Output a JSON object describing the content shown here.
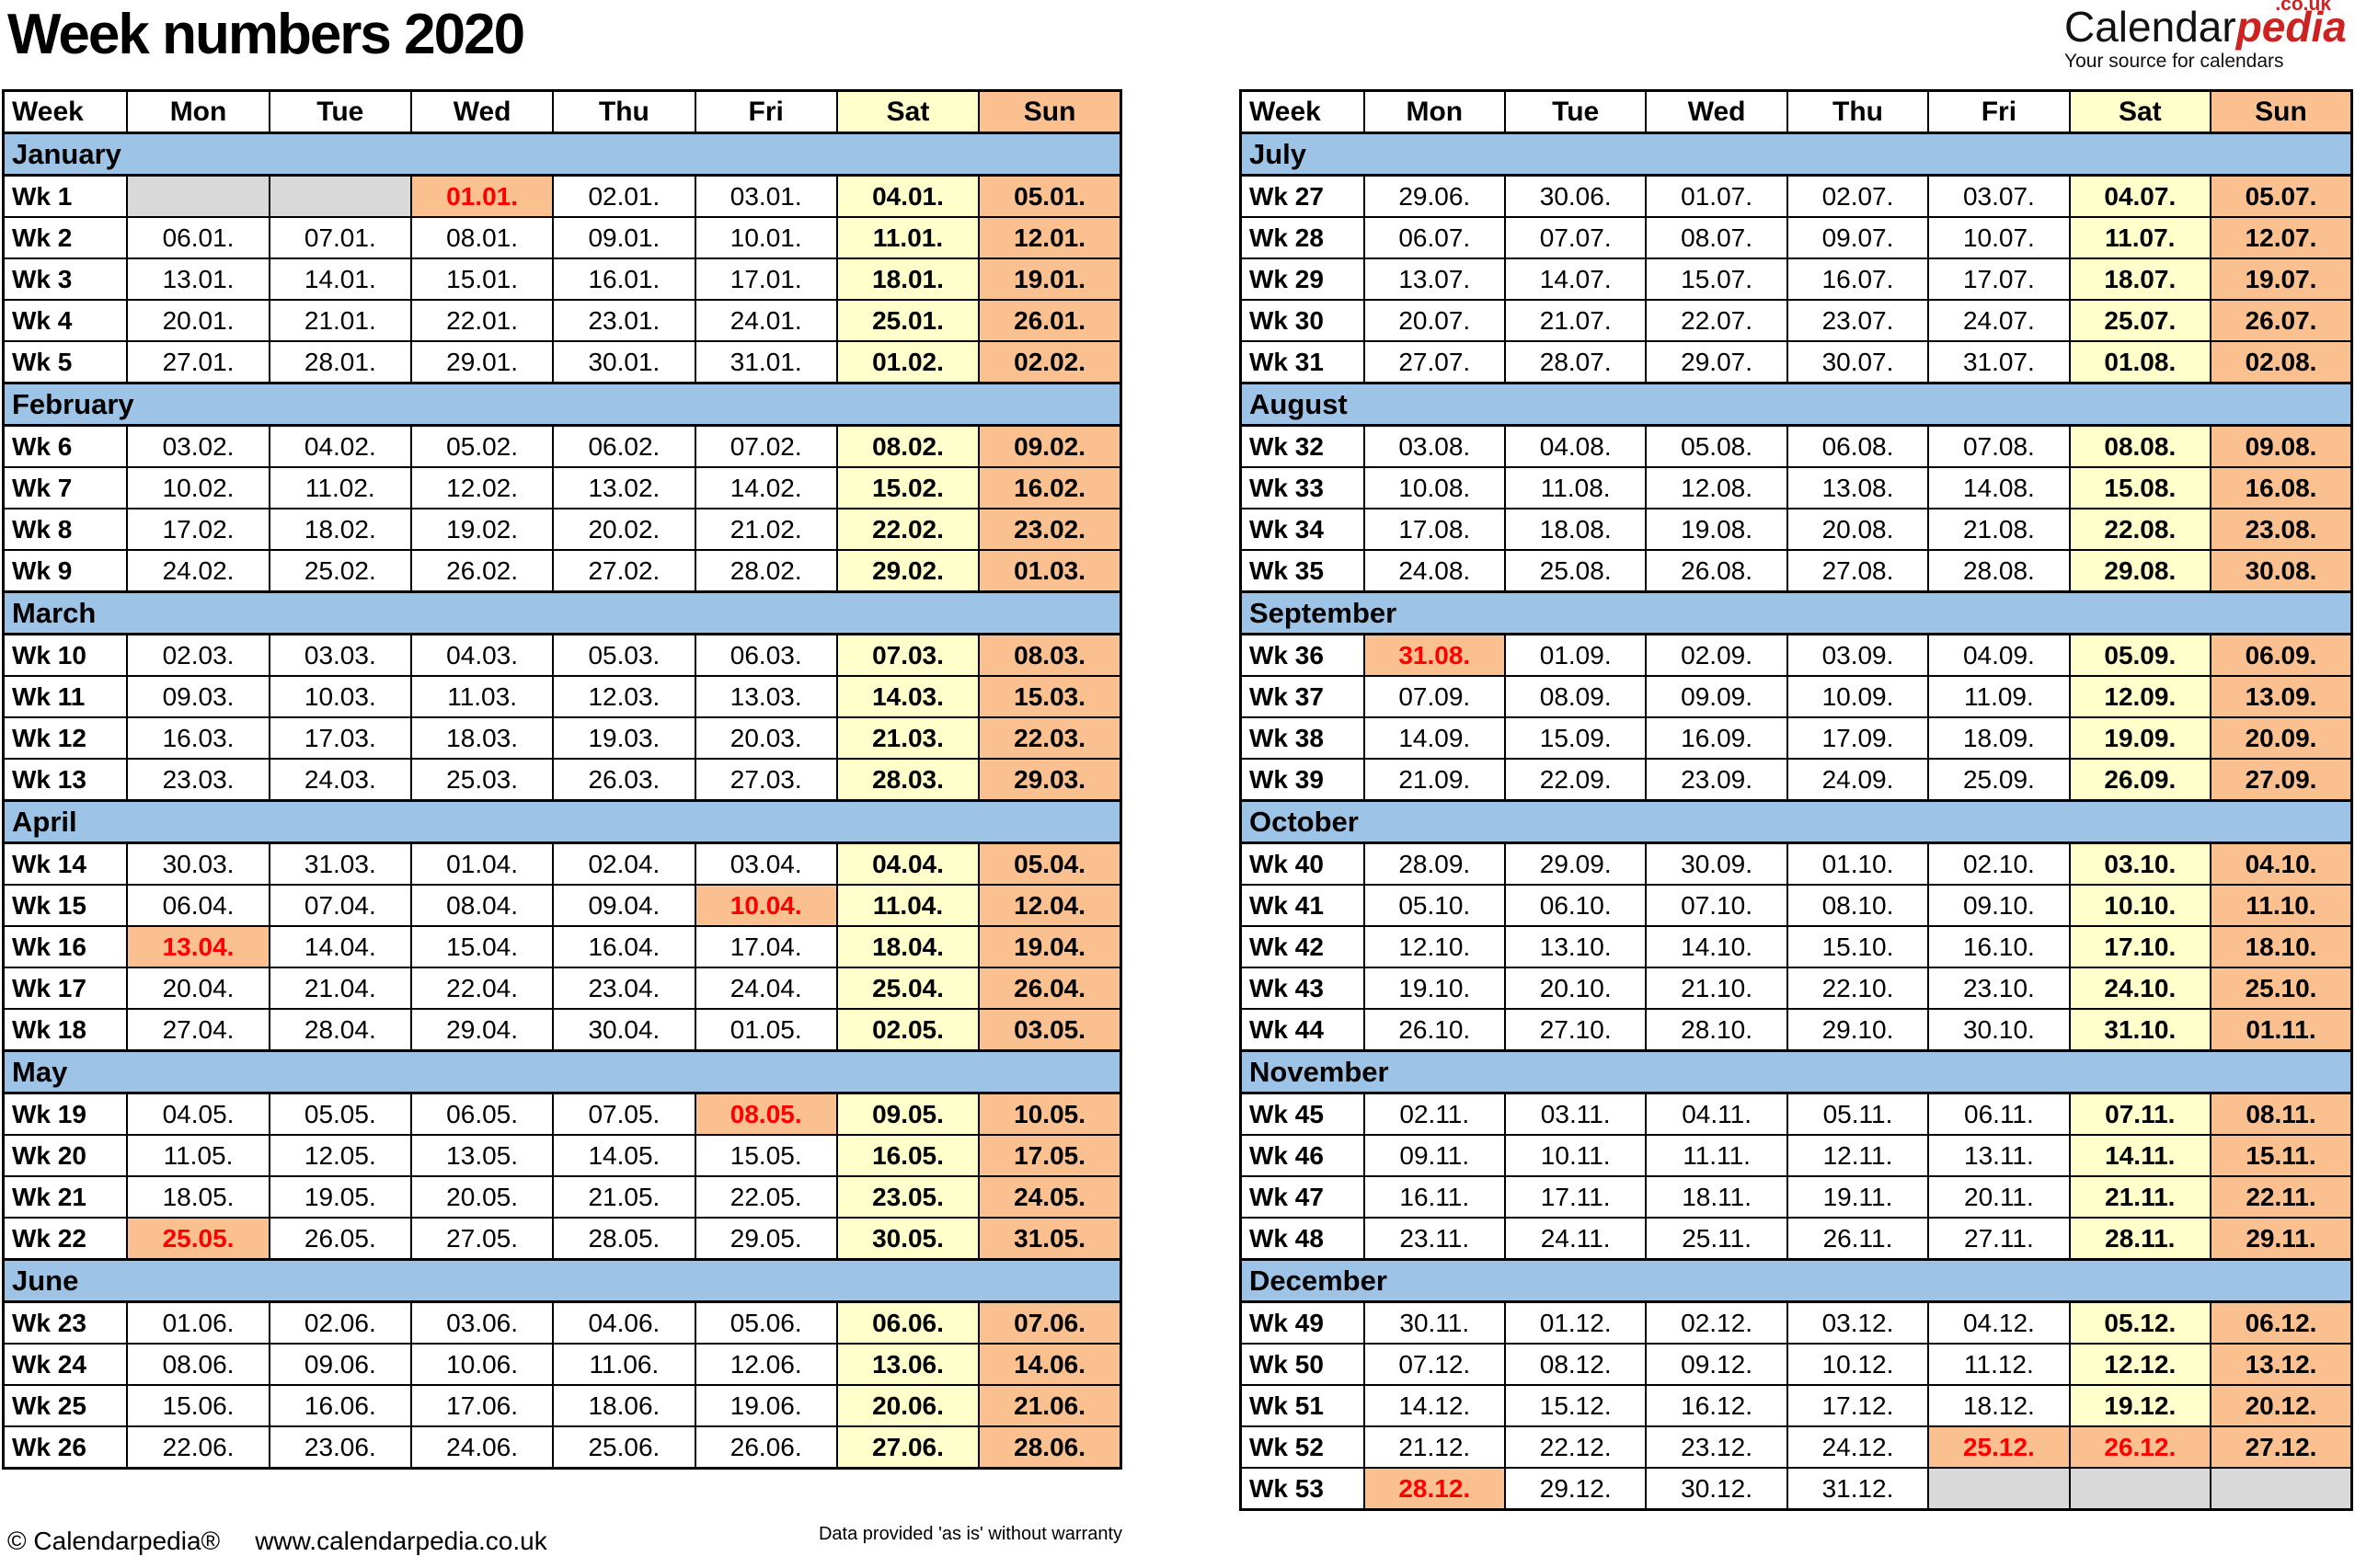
{
  "title": "Week numbers 2020",
  "logo": {
    "brand_black": "Calendar",
    "brand_red": "pedia",
    "tld": ".co.uk",
    "tagline": "Your source for calendars"
  },
  "footer": {
    "copyright": "© Calendarpedia®",
    "url": "www.calendarpedia.co.uk",
    "disclaimer": "Data provided 'as is' without warranty"
  },
  "colors": {
    "month_bg": "#9DC3E6",
    "sat_bg": "#FFFFCC",
    "sun_bg": "#FAC090",
    "holiday_bg": "#FAC090",
    "empty_bg": "#D9D9D9",
    "holiday_text": "#FF0000",
    "brand_red": "#CC2222"
  },
  "columns": [
    "Week",
    "Mon",
    "Tue",
    "Wed",
    "Thu",
    "Fri",
    "Sat",
    "Sun"
  ],
  "tables": [
    {
      "id": "left",
      "months": [
        {
          "name": "January",
          "weeks": [
            {
              "label": "Wk 1",
              "days": [
                "",
                "",
                "01.01.",
                "02.01.",
                "03.01.",
                "04.01.",
                "05.01."
              ],
              "holidays": [
                2
              ]
            },
            {
              "label": "Wk 2",
              "days": [
                "06.01.",
                "07.01.",
                "08.01.",
                "09.01.",
                "10.01.",
                "11.01.",
                "12.01."
              ]
            },
            {
              "label": "Wk 3",
              "days": [
                "13.01.",
                "14.01.",
                "15.01.",
                "16.01.",
                "17.01.",
                "18.01.",
                "19.01."
              ]
            },
            {
              "label": "Wk 4",
              "days": [
                "20.01.",
                "21.01.",
                "22.01.",
                "23.01.",
                "24.01.",
                "25.01.",
                "26.01."
              ]
            },
            {
              "label": "Wk 5",
              "days": [
                "27.01.",
                "28.01.",
                "29.01.",
                "30.01.",
                "31.01.",
                "01.02.",
                "02.02."
              ]
            }
          ]
        },
        {
          "name": "February",
          "weeks": [
            {
              "label": "Wk 6",
              "days": [
                "03.02.",
                "04.02.",
                "05.02.",
                "06.02.",
                "07.02.",
                "08.02.",
                "09.02."
              ]
            },
            {
              "label": "Wk 7",
              "days": [
                "10.02.",
                "11.02.",
                "12.02.",
                "13.02.",
                "14.02.",
                "15.02.",
                "16.02."
              ]
            },
            {
              "label": "Wk 8",
              "days": [
                "17.02.",
                "18.02.",
                "19.02.",
                "20.02.",
                "21.02.",
                "22.02.",
                "23.02."
              ]
            },
            {
              "label": "Wk 9",
              "days": [
                "24.02.",
                "25.02.",
                "26.02.",
                "27.02.",
                "28.02.",
                "29.02.",
                "01.03."
              ]
            }
          ]
        },
        {
          "name": "March",
          "weeks": [
            {
              "label": "Wk 10",
              "days": [
                "02.03.",
                "03.03.",
                "04.03.",
                "05.03.",
                "06.03.",
                "07.03.",
                "08.03."
              ]
            },
            {
              "label": "Wk 11",
              "days": [
                "09.03.",
                "10.03.",
                "11.03.",
                "12.03.",
                "13.03.",
                "14.03.",
                "15.03."
              ]
            },
            {
              "label": "Wk 12",
              "days": [
                "16.03.",
                "17.03.",
                "18.03.",
                "19.03.",
                "20.03.",
                "21.03.",
                "22.03."
              ]
            },
            {
              "label": "Wk 13",
              "days": [
                "23.03.",
                "24.03.",
                "25.03.",
                "26.03.",
                "27.03.",
                "28.03.",
                "29.03."
              ]
            }
          ]
        },
        {
          "name": "April",
          "weeks": [
            {
              "label": "Wk 14",
              "days": [
                "30.03.",
                "31.03.",
                "01.04.",
                "02.04.",
                "03.04.",
                "04.04.",
                "05.04."
              ]
            },
            {
              "label": "Wk 15",
              "days": [
                "06.04.",
                "07.04.",
                "08.04.",
                "09.04.",
                "10.04.",
                "11.04.",
                "12.04."
              ],
              "holidays": [
                4
              ]
            },
            {
              "label": "Wk 16",
              "days": [
                "13.04.",
                "14.04.",
                "15.04.",
                "16.04.",
                "17.04.",
                "18.04.",
                "19.04."
              ],
              "holidays": [
                0
              ]
            },
            {
              "label": "Wk 17",
              "days": [
                "20.04.",
                "21.04.",
                "22.04.",
                "23.04.",
                "24.04.",
                "25.04.",
                "26.04."
              ]
            },
            {
              "label": "Wk 18",
              "days": [
                "27.04.",
                "28.04.",
                "29.04.",
                "30.04.",
                "01.05.",
                "02.05.",
                "03.05."
              ]
            }
          ]
        },
        {
          "name": "May",
          "weeks": [
            {
              "label": "Wk 19",
              "days": [
                "04.05.",
                "05.05.",
                "06.05.",
                "07.05.",
                "08.05.",
                "09.05.",
                "10.05."
              ],
              "holidays": [
                4
              ]
            },
            {
              "label": "Wk 20",
              "days": [
                "11.05.",
                "12.05.",
                "13.05.",
                "14.05.",
                "15.05.",
                "16.05.",
                "17.05."
              ]
            },
            {
              "label": "Wk 21",
              "days": [
                "18.05.",
                "19.05.",
                "20.05.",
                "21.05.",
                "22.05.",
                "23.05.",
                "24.05."
              ]
            },
            {
              "label": "Wk 22",
              "days": [
                "25.05.",
                "26.05.",
                "27.05.",
                "28.05.",
                "29.05.",
                "30.05.",
                "31.05."
              ],
              "holidays": [
                0
              ]
            }
          ]
        },
        {
          "name": "June",
          "weeks": [
            {
              "label": "Wk 23",
              "days": [
                "01.06.",
                "02.06.",
                "03.06.",
                "04.06.",
                "05.06.",
                "06.06.",
                "07.06."
              ]
            },
            {
              "label": "Wk 24",
              "days": [
                "08.06.",
                "09.06.",
                "10.06.",
                "11.06.",
                "12.06.",
                "13.06.",
                "14.06."
              ]
            },
            {
              "label": "Wk 25",
              "days": [
                "15.06.",
                "16.06.",
                "17.06.",
                "18.06.",
                "19.06.",
                "20.06.",
                "21.06."
              ]
            },
            {
              "label": "Wk 26",
              "days": [
                "22.06.",
                "23.06.",
                "24.06.",
                "25.06.",
                "26.06.",
                "27.06.",
                "28.06."
              ]
            }
          ]
        }
      ]
    },
    {
      "id": "right",
      "months": [
        {
          "name": "July",
          "weeks": [
            {
              "label": "Wk 27",
              "days": [
                "29.06.",
                "30.06.",
                "01.07.",
                "02.07.",
                "03.07.",
                "04.07.",
                "05.07."
              ]
            },
            {
              "label": "Wk 28",
              "days": [
                "06.07.",
                "07.07.",
                "08.07.",
                "09.07.",
                "10.07.",
                "11.07.",
                "12.07."
              ]
            },
            {
              "label": "Wk 29",
              "days": [
                "13.07.",
                "14.07.",
                "15.07.",
                "16.07.",
                "17.07.",
                "18.07.",
                "19.07."
              ]
            },
            {
              "label": "Wk 30",
              "days": [
                "20.07.",
                "21.07.",
                "22.07.",
                "23.07.",
                "24.07.",
                "25.07.",
                "26.07."
              ]
            },
            {
              "label": "Wk 31",
              "days": [
                "27.07.",
                "28.07.",
                "29.07.",
                "30.07.",
                "31.07.",
                "01.08.",
                "02.08."
              ]
            }
          ]
        },
        {
          "name": "August",
          "weeks": [
            {
              "label": "Wk 32",
              "days": [
                "03.08.",
                "04.08.",
                "05.08.",
                "06.08.",
                "07.08.",
                "08.08.",
                "09.08."
              ]
            },
            {
              "label": "Wk 33",
              "days": [
                "10.08.",
                "11.08.",
                "12.08.",
                "13.08.",
                "14.08.",
                "15.08.",
                "16.08."
              ]
            },
            {
              "label": "Wk 34",
              "days": [
                "17.08.",
                "18.08.",
                "19.08.",
                "20.08.",
                "21.08.",
                "22.08.",
                "23.08."
              ]
            },
            {
              "label": "Wk 35",
              "days": [
                "24.08.",
                "25.08.",
                "26.08.",
                "27.08.",
                "28.08.",
                "29.08.",
                "30.08."
              ]
            }
          ]
        },
        {
          "name": "September",
          "weeks": [
            {
              "label": "Wk 36",
              "days": [
                "31.08.",
                "01.09.",
                "02.09.",
                "03.09.",
                "04.09.",
                "05.09.",
                "06.09."
              ],
              "holidays": [
                0
              ]
            },
            {
              "label": "Wk 37",
              "days": [
                "07.09.",
                "08.09.",
                "09.09.",
                "10.09.",
                "11.09.",
                "12.09.",
                "13.09."
              ]
            },
            {
              "label": "Wk 38",
              "days": [
                "14.09.",
                "15.09.",
                "16.09.",
                "17.09.",
                "18.09.",
                "19.09.",
                "20.09."
              ]
            },
            {
              "label": "Wk 39",
              "days": [
                "21.09.",
                "22.09.",
                "23.09.",
                "24.09.",
                "25.09.",
                "26.09.",
                "27.09."
              ]
            }
          ]
        },
        {
          "name": "October",
          "weeks": [
            {
              "label": "Wk 40",
              "days": [
                "28.09.",
                "29.09.",
                "30.09.",
                "01.10.",
                "02.10.",
                "03.10.",
                "04.10."
              ]
            },
            {
              "label": "Wk 41",
              "days": [
                "05.10.",
                "06.10.",
                "07.10.",
                "08.10.",
                "09.10.",
                "10.10.",
                "11.10."
              ]
            },
            {
              "label": "Wk 42",
              "days": [
                "12.10.",
                "13.10.",
                "14.10.",
                "15.10.",
                "16.10.",
                "17.10.",
                "18.10."
              ]
            },
            {
              "label": "Wk 43",
              "days": [
                "19.10.",
                "20.10.",
                "21.10.",
                "22.10.",
                "23.10.",
                "24.10.",
                "25.10."
              ]
            },
            {
              "label": "Wk 44",
              "days": [
                "26.10.",
                "27.10.",
                "28.10.",
                "29.10.",
                "30.10.",
                "31.10.",
                "01.11."
              ]
            }
          ]
        },
        {
          "name": "November",
          "weeks": [
            {
              "label": "Wk 45",
              "days": [
                "02.11.",
                "03.11.",
                "04.11.",
                "05.11.",
                "06.11.",
                "07.11.",
                "08.11."
              ]
            },
            {
              "label": "Wk 46",
              "days": [
                "09.11.",
                "10.11.",
                "11.11.",
                "12.11.",
                "13.11.",
                "14.11.",
                "15.11."
              ]
            },
            {
              "label": "Wk 47",
              "days": [
                "16.11.",
                "17.11.",
                "18.11.",
                "19.11.",
                "20.11.",
                "21.11.",
                "22.11."
              ]
            },
            {
              "label": "Wk 48",
              "days": [
                "23.11.",
                "24.11.",
                "25.11.",
                "26.11.",
                "27.11.",
                "28.11.",
                "29.11."
              ]
            }
          ]
        },
        {
          "name": "December",
          "weeks": [
            {
              "label": "Wk 49",
              "days": [
                "30.11.",
                "01.12.",
                "02.12.",
                "03.12.",
                "04.12.",
                "05.12.",
                "06.12."
              ]
            },
            {
              "label": "Wk 50",
              "days": [
                "07.12.",
                "08.12.",
                "09.12.",
                "10.12.",
                "11.12.",
                "12.12.",
                "13.12."
              ]
            },
            {
              "label": "Wk 51",
              "days": [
                "14.12.",
                "15.12.",
                "16.12.",
                "17.12.",
                "18.12.",
                "19.12.",
                "20.12."
              ]
            },
            {
              "label": "Wk 52",
              "days": [
                "21.12.",
                "22.12.",
                "23.12.",
                "24.12.",
                "25.12.",
                "26.12.",
                "27.12."
              ],
              "holidays": [
                4,
                5
              ]
            },
            {
              "label": "Wk 53",
              "days": [
                "28.12.",
                "29.12.",
                "30.12.",
                "31.12.",
                "",
                "",
                ""
              ],
              "holidays": [
                0
              ]
            }
          ]
        }
      ]
    }
  ]
}
